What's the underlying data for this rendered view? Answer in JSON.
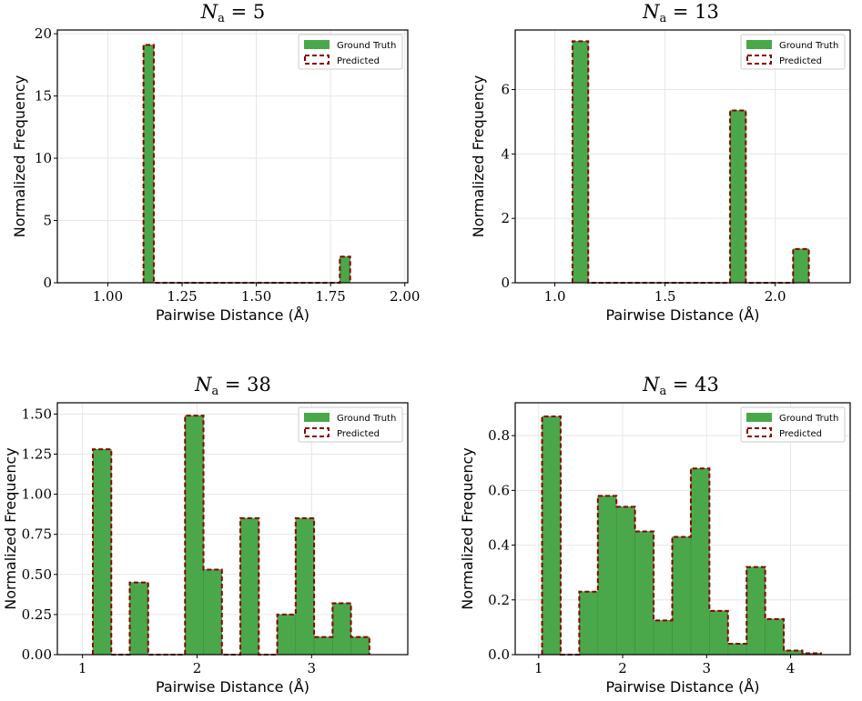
{
  "colors": {
    "ground_truth": "#4aa84a",
    "predicted": "#8b0000"
  },
  "chart_data": [
    {
      "type": "bar",
      "title_symbol": "N",
      "title_subscript": "a",
      "title_rest": " = 5",
      "xlabel": "Pairwise Distance (Å)",
      "ylabel": "Normalized Frequency",
      "xlim": [
        0.83,
        2.01
      ],
      "ylim": [
        0,
        20.3
      ],
      "xticks": [
        1.0,
        1.25,
        1.5,
        1.75,
        2.0
      ],
      "xtick_labels": [
        "1.00",
        "1.25",
        "1.50",
        "1.75",
        "2.00"
      ],
      "yticks": [
        0,
        5,
        10,
        15,
        20
      ],
      "ytick_labels": [
        "0",
        "5",
        "10",
        "15",
        "20"
      ],
      "bin_start": 1.12,
      "bin_width": 0.0348,
      "values": [
        19.1,
        0,
        0,
        0,
        0,
        0,
        0,
        0,
        0,
        0,
        0,
        0,
        0,
        0,
        0,
        0,
        0,
        0,
        0,
        2.1
      ],
      "legend": [
        "Ground Truth",
        "Predicted"
      ],
      "legend_position": "top-right"
    },
    {
      "type": "bar",
      "title_symbol": "N",
      "title_subscript": "a",
      "title_rest": " = 13",
      "xlabel": "Pairwise Distance (Å)",
      "ylabel": "Normalized Frequency",
      "xlim": [
        0.82,
        2.34
      ],
      "ylim": [
        0,
        7.85
      ],
      "xticks": [
        1.0,
        1.5,
        2.0
      ],
      "xtick_labels": [
        "1.0",
        "1.5",
        "2.0"
      ],
      "yticks": [
        0,
        2,
        4,
        6
      ],
      "ytick_labels": [
        "0",
        "2",
        "4",
        "6"
      ],
      "bin_start": 1.08,
      "bin_width": 0.0715,
      "values": [
        7.5,
        0,
        0,
        0,
        0,
        0,
        0,
        0,
        0,
        0,
        5.35,
        0,
        0,
        0,
        1.05
      ],
      "legend": [
        "Ground Truth",
        "Predicted"
      ],
      "legend_position": "top-right"
    },
    {
      "type": "bar",
      "title_symbol": "N",
      "title_subscript": "a",
      "title_rest": " = 38",
      "xlabel": "Pairwise Distance (Å)",
      "ylabel": "Normalized Frequency",
      "xlim": [
        0.78,
        3.84
      ],
      "ylim": [
        0,
        1.57
      ],
      "xticks": [
        1,
        2,
        3
      ],
      "xtick_labels": [
        "1",
        "2",
        "3"
      ],
      "yticks": [
        0,
        0.25,
        0.5,
        0.75,
        1.0,
        1.25,
        1.5
      ],
      "ytick_labels": [
        "0.00",
        "0.25",
        "0.50",
        "0.75",
        "1.00",
        "1.25",
        "1.50"
      ],
      "bin_start": 1.09,
      "bin_width": 0.161,
      "values": [
        1.28,
        0,
        0.45,
        0,
        0,
        1.49,
        0.53,
        0,
        0.85,
        0,
        0.25,
        0.85,
        0.11,
        0.32,
        0.11
      ],
      "legend": [
        "Ground Truth",
        "Predicted"
      ],
      "legend_position": "top-right"
    },
    {
      "type": "bar",
      "title_symbol": "N",
      "title_subscript": "a",
      "title_rest": " = 43",
      "xlabel": "Pairwise Distance (Å)",
      "ylabel": "Normalized Frequency",
      "xlim": [
        0.72,
        4.71
      ],
      "ylim": [
        0,
        0.92
      ],
      "xticks": [
        1,
        2,
        3,
        4
      ],
      "xtick_labels": [
        "1",
        "2",
        "3",
        "4"
      ],
      "yticks": [
        0,
        0.2,
        0.4,
        0.6,
        0.8
      ],
      "ytick_labels": [
        "0.0",
        "0.2",
        "0.4",
        "0.6",
        "0.8"
      ],
      "bin_start": 1.04,
      "bin_width": 0.2215,
      "values": [
        0.87,
        0,
        0.23,
        0.58,
        0.54,
        0.45,
        0.125,
        0.43,
        0.68,
        0.16,
        0.04,
        0.32,
        0.13,
        0.015,
        0.005
      ],
      "legend": [
        "Ground Truth",
        "Predicted"
      ],
      "legend_position": "top-right"
    }
  ]
}
